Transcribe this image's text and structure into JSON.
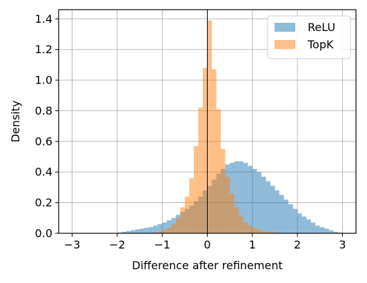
{
  "chart_data": {
    "type": "histogram",
    "xlabel": "Difference after refinement",
    "ylabel": "Density",
    "xlim": [
      -3.3,
      3.3
    ],
    "ylim": [
      0,
      1.46
    ],
    "xticks": [
      -3,
      -2,
      -1,
      0,
      1,
      2,
      3
    ],
    "xtick_labels": [
      "−3",
      "−2",
      "−1",
      "0",
      "1",
      "2",
      "3"
    ],
    "yticks": [
      0.0,
      0.2,
      0.4,
      0.6,
      0.8,
      1.0,
      1.2,
      1.4
    ],
    "ytick_labels": [
      "0.0",
      "0.2",
      "0.4",
      "0.6",
      "0.8",
      "1.0",
      "1.2",
      "1.4"
    ],
    "grid": true,
    "vline_x": 0,
    "legend": {
      "position": "top-right",
      "entries": [
        "ReLU",
        "TopK"
      ]
    },
    "bin_width": 0.1,
    "series": [
      {
        "name": "ReLU",
        "color": "#1f77b4",
        "alpha": 0.5,
        "bin_starts": [
          -3.0,
          -2.9,
          -2.8,
          -2.7,
          -2.6,
          -2.5,
          -2.4,
          -2.3,
          -2.2,
          -2.1,
          -2.0,
          -1.9,
          -1.8,
          -1.7,
          -1.6,
          -1.5,
          -1.4,
          -1.3,
          -1.2,
          -1.1,
          -1.0,
          -0.9,
          -0.8,
          -0.7,
          -0.6,
          -0.5,
          -0.4,
          -0.3,
          -0.2,
          -0.1,
          0.0,
          0.1,
          0.2,
          0.3,
          0.4,
          0.5,
          0.6,
          0.7,
          0.8,
          0.9,
          1.0,
          1.1,
          1.2,
          1.3,
          1.4,
          1.5,
          1.6,
          1.7,
          1.8,
          1.9,
          2.0,
          2.1,
          2.2,
          2.3,
          2.4,
          2.5,
          2.6,
          2.7,
          2.8,
          2.9
        ],
        "values": [
          0.0,
          0.0,
          0.0,
          0.0,
          0.0,
          0.0,
          0.0,
          0.0,
          0.0,
          0.0,
          0.005,
          0.01,
          0.015,
          0.02,
          0.025,
          0.03,
          0.035,
          0.04,
          0.05,
          0.06,
          0.07,
          0.085,
          0.1,
          0.12,
          0.14,
          0.16,
          0.18,
          0.21,
          0.24,
          0.28,
          0.31,
          0.35,
          0.39,
          0.42,
          0.45,
          0.46,
          0.47,
          0.47,
          0.46,
          0.44,
          0.42,
          0.4,
          0.37,
          0.34,
          0.31,
          0.28,
          0.25,
          0.22,
          0.19,
          0.16,
          0.13,
          0.11,
          0.09,
          0.07,
          0.05,
          0.04,
          0.03,
          0.02,
          0.01,
          0.005
        ]
      },
      {
        "name": "TopK",
        "color": "#ff7f0e",
        "alpha": 0.5,
        "bin_starts": [
          -1.2,
          -1.1,
          -1.0,
          -0.9,
          -0.8,
          -0.7,
          -0.6,
          -0.5,
          -0.4,
          -0.3,
          -0.2,
          -0.1,
          0.0,
          0.1,
          0.2,
          0.3,
          0.4,
          0.5,
          0.6,
          0.7,
          0.8,
          0.9,
          1.0,
          1.1,
          1.2,
          1.3,
          1.4,
          1.5,
          1.6,
          1.7
        ],
        "values": [
          0.005,
          0.01,
          0.02,
          0.035,
          0.06,
          0.1,
          0.17,
          0.24,
          0.36,
          0.57,
          0.82,
          1.08,
          1.39,
          1.07,
          0.81,
          0.55,
          0.37,
          0.26,
          0.17,
          0.11,
          0.07,
          0.05,
          0.035,
          0.025,
          0.015,
          0.01,
          0.007,
          0.005,
          0.003,
          0.002
        ]
      }
    ]
  }
}
